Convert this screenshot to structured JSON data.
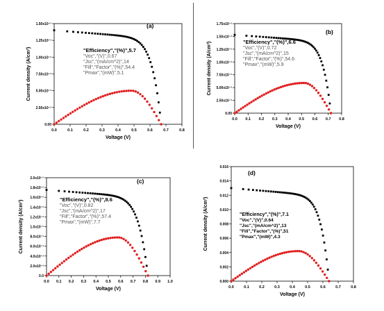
{
  "colors": {
    "dark_series": "#000000",
    "power_series": "#e02020",
    "axis": "#000000"
  },
  "chart_data": [
    {
      "type": "scatter",
      "panel_label": "(a)",
      "xlabel": "Voltage (V)",
      "ylabel": "Current density (A/cm²)",
      "xlim": [
        0,
        0.8
      ],
      "ylim": [
        0,
        0.015
      ],
      "xticks": [
        "0.0",
        "0.1",
        "0.2",
        "0.3",
        "0.4",
        "0.5",
        "0.6",
        "0.7",
        "0.8"
      ],
      "xtick_values": [
        0,
        0.1,
        0.2,
        0.3,
        0.4,
        0.5,
        0.6,
        0.7,
        0.8
      ],
      "yticks": [
        "0.00",
        "2.50x10⁻³",
        "5.00x10⁻³",
        "7.50x10⁻³",
        "1.00x10⁻²",
        "1.25x10⁻²",
        "1.50x10⁻²"
      ],
      "ytick_values": [
        0,
        0.0025,
        0.005,
        0.0075,
        0.01,
        0.0125,
        0.015
      ],
      "annotations": [
        "\"Efficiency\",\"(%)\",5.7",
        "\"Voc\",\"(V)\",0.67",
        "\"Jsc\",\"(mA/cm^2)\",14",
        "\"Fill\",\"Factor\",\"(%)\",54.4",
        "\"Pmax\",\"(mW)\",5.1"
      ],
      "series": [
        {
          "kind": "jv",
          "color": "#000000",
          "jsc": 0.014,
          "voc": 0.67,
          "knee": 12
        },
        {
          "kind": "power",
          "color": "#e02020",
          "peak": 0.005,
          "vmax": 0.67,
          "vpk": 0.485
        }
      ]
    },
    {
      "type": "scatter",
      "panel_label": "(b)",
      "xlabel": "Voltage (V)",
      "ylabel": "Current density (A/cm²)",
      "xlim": [
        0,
        0.8
      ],
      "ylim": [
        0,
        0.0175
      ],
      "xticks": [
        "0.0",
        "0.1",
        "0.2",
        "0.3",
        "0.4",
        "0.5",
        "0.6",
        "0.7",
        "0.8"
      ],
      "xtick_values": [
        0,
        0.1,
        0.2,
        0.3,
        0.4,
        0.5,
        0.6,
        0.7,
        0.8
      ],
      "yticks": [
        "0.00",
        "2.50x10⁻³",
        "5.00x10⁻³",
        "7.50x10⁻³",
        "1.00x10⁻²",
        "1.25x10⁻²",
        "1.50x10⁻²",
        "1.75x10⁻²"
      ],
      "ytick_values": [
        0,
        0.0025,
        0.005,
        0.0075,
        0.01,
        0.0125,
        0.015,
        0.0175
      ],
      "annotations": [
        "\"Efficiency\",\"(%)\",6.6",
        "\"Voc\",\"(V)\",0.72",
        "\"Jsc\",\"(mA/cm^2)\",15",
        "\"Fill\",\"Factor\",\"(%)\",54.6",
        "\"Pmax\",\"(mW)\",5.9"
      ],
      "series": [
        {
          "kind": "jv",
          "color": "#000000",
          "jsc": 0.0153,
          "voc": 0.72,
          "knee": 12
        },
        {
          "kind": "power",
          "color": "#e02020",
          "peak": 0.0059,
          "vmax": 0.72,
          "vpk": 0.52
        }
      ]
    },
    {
      "type": "scatter",
      "panel_label": "(c)",
      "xlabel": "Voltage (V)",
      "ylabel": "Current density (A/cm²)",
      "xlim": [
        0,
        1.0
      ],
      "ylim": [
        0,
        0.02
      ],
      "xticks": [
        "0.0",
        "0.1",
        "0.2",
        "0.3",
        "0.4",
        "0.5",
        "0.6",
        "0.7",
        "0.8",
        "0.9",
        "1.0"
      ],
      "xtick_values": [
        0,
        0.1,
        0.2,
        0.3,
        0.4,
        0.5,
        0.6,
        0.7,
        0.8,
        0.9,
        1.0
      ],
      "yticks": [
        "0.0",
        "2.0x10⁻³",
        "4.0x10⁻³",
        "6.0x10⁻³",
        "8.0x10⁻³",
        "1.0x10⁻²",
        "1.2x10⁻²",
        "1.4x10⁻²",
        "1.6x10⁻²",
        "1.8x10⁻²",
        "2.0x10⁻²"
      ],
      "ytick_values": [
        0,
        0.002,
        0.004,
        0.006,
        0.008,
        0.01,
        0.012,
        0.014,
        0.016,
        0.018,
        0.02
      ],
      "annotations": [
        "\"Efficiency\",\"(%)\",8.6",
        "\"Voc\",\"(V)\",0.82",
        "\"Jsc\",\"(mA/cm^2)\",17",
        "\"Fill\",\"Factor\",\"(%)\",57.4",
        "\"Pmax\",\"(mW)\",7.7"
      ],
      "series": [
        {
          "kind": "jv",
          "color": "#000000",
          "jsc": 0.0175,
          "voc": 0.82,
          "knee": 11
        },
        {
          "kind": "power",
          "color": "#e02020",
          "peak": 0.0078,
          "vmax": 0.82,
          "vpk": 0.58
        }
      ]
    },
    {
      "type": "scatter",
      "panel_label": "(d)",
      "xlabel": "Voltage (V)",
      "ylabel": "Current density (A/cm²)",
      "xlim": [
        0,
        0.8
      ],
      "ylim": [
        0,
        0.016
      ],
      "xticks": [
        "0.0",
        "0.1",
        "0.2",
        "0.3",
        "0.4",
        "0.5",
        "0.6",
        "0.7",
        "0.8"
      ],
      "xtick_values": [
        0,
        0.1,
        0.2,
        0.3,
        0.4,
        0.5,
        0.6,
        0.7,
        0.8
      ],
      "yticks": [
        "0.000",
        "0.002",
        "0.004",
        "0.006",
        "0.008",
        "0.010",
        "0.012",
        "0.014",
        "0.016"
      ],
      "ytick_values": [
        0,
        0.002,
        0.004,
        0.006,
        0.008,
        0.01,
        0.012,
        0.014,
        0.016
      ],
      "annotations": [
        "\"Efficiency\",\"(%)\",7.1",
        "\"Voc\",\"(V)\",0.64",
        "\"Jsc\",\"(mA/cm^2)\",13",
        "\"Fill\",\"Factor\",\"(%)\",51",
        "\"Pmax\",\"(mW)\",4.3"
      ],
      "series": [
        {
          "kind": "jv",
          "color": "#000000",
          "jsc": 0.013,
          "voc": 0.64,
          "knee": 12
        },
        {
          "kind": "power",
          "color": "#e02020",
          "peak": 0.0042,
          "vmax": 0.64,
          "vpk": 0.44
        }
      ]
    }
  ]
}
